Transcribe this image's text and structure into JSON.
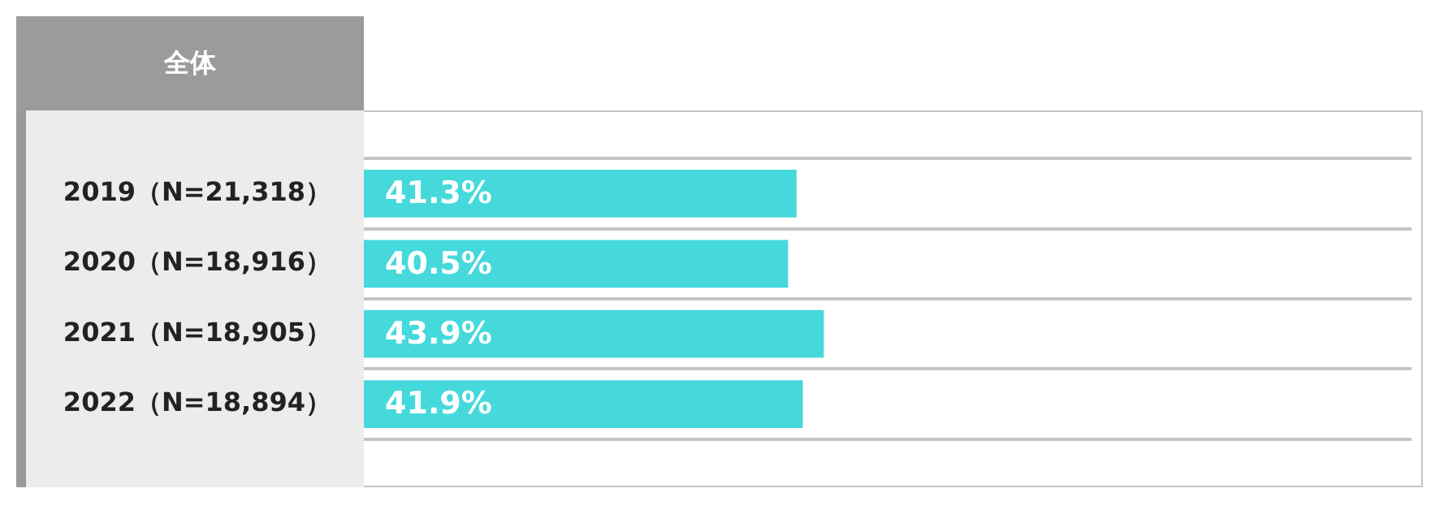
{
  "chart_data": {
    "type": "bar",
    "orientation": "horizontal",
    "title": "全体",
    "categories": [
      "2019（N=21,318）",
      "2020（N=18,916）",
      "2021（N=18,905）",
      "2022（N=18,894）"
    ],
    "values": [
      41.3,
      40.5,
      43.9,
      41.9
    ],
    "value_labels": [
      "41.3%",
      "40.5%",
      "43.9%",
      "41.9%"
    ],
    "color": "#45d9dc",
    "xlim": [
      0,
      100
    ],
    "tick_labels": "y",
    "grid": "y",
    "legend": false
  }
}
